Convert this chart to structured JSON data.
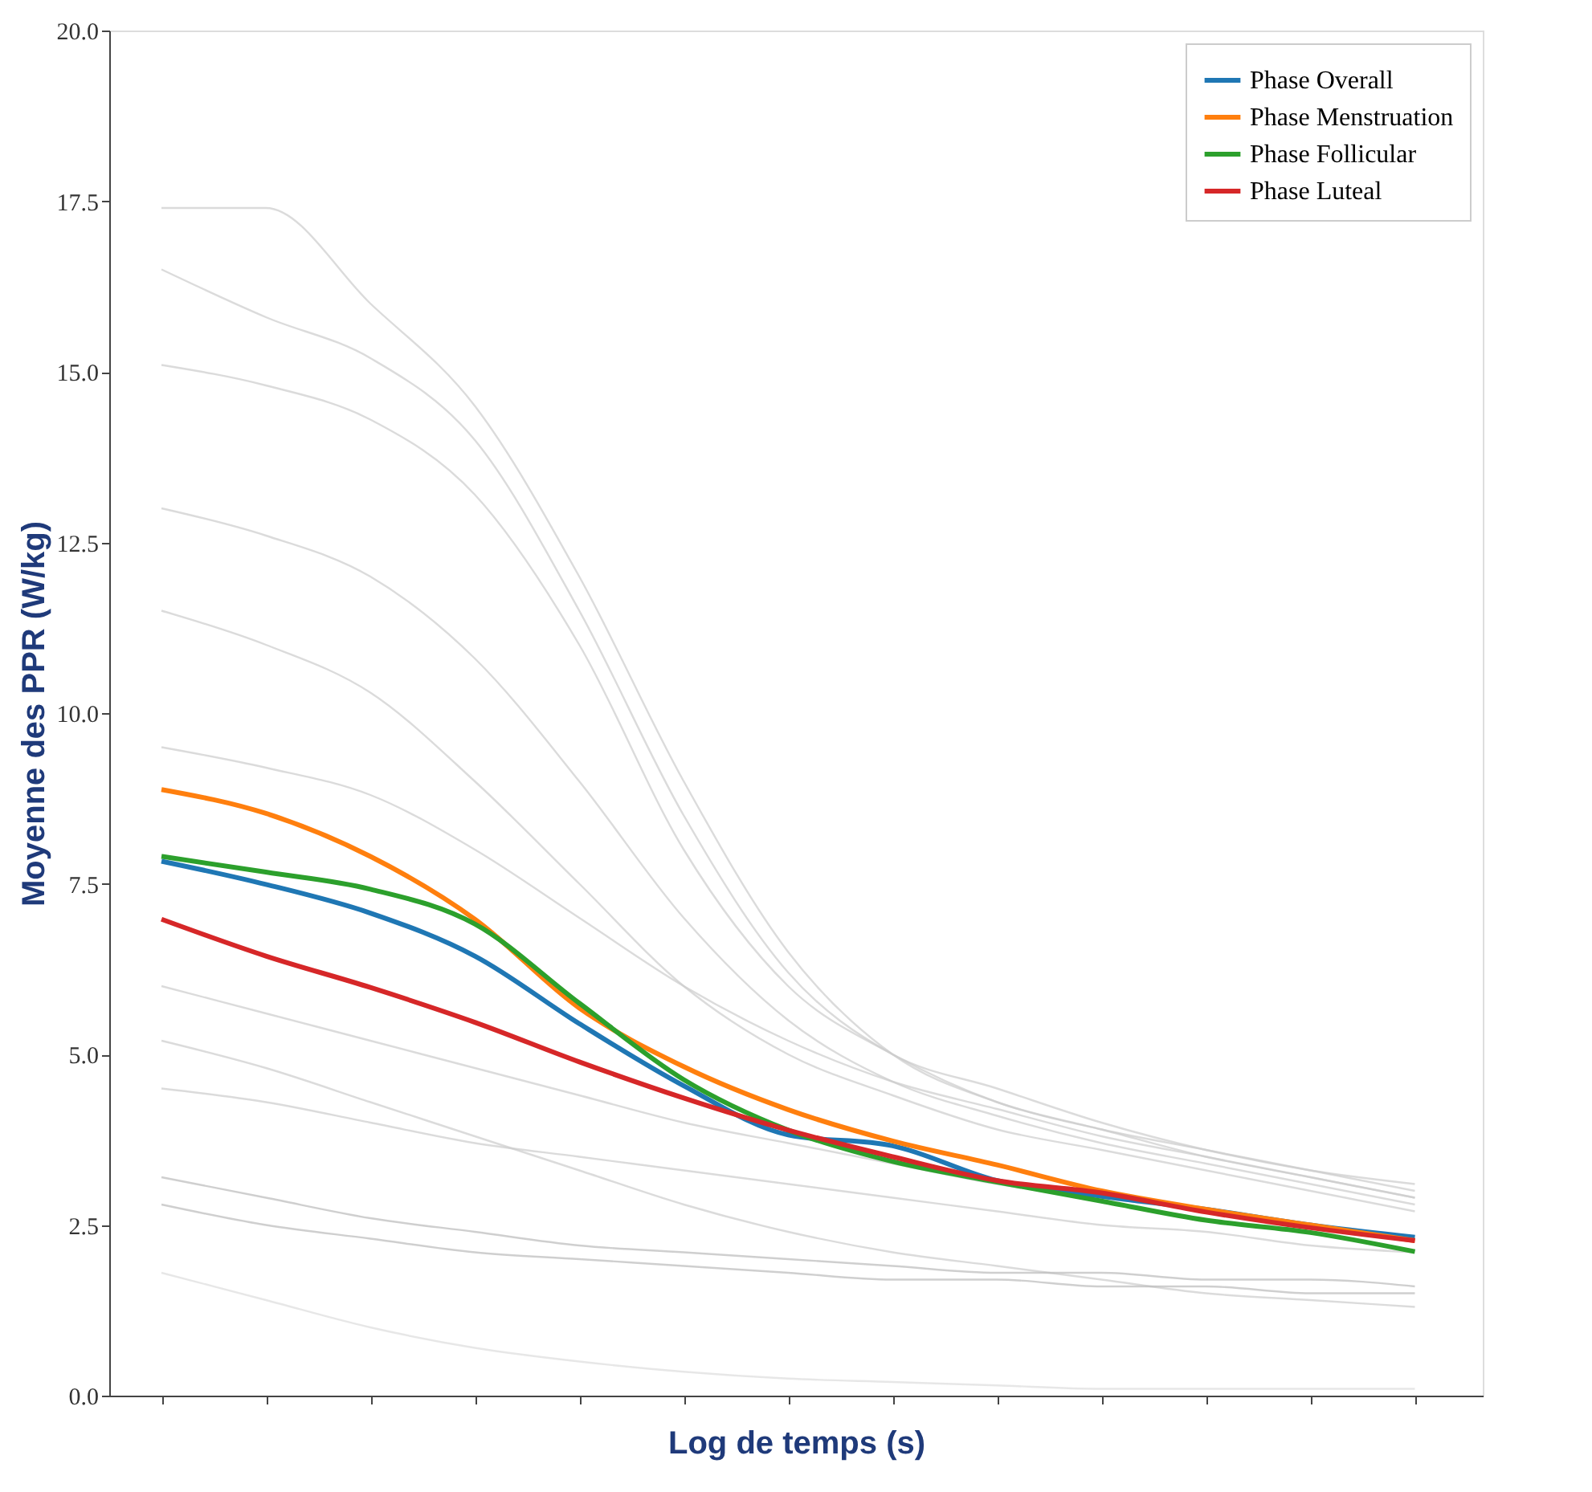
{
  "chart_data": {
    "type": "line",
    "xlabel": "Log de temps (s)",
    "ylabel": "Moyenne des PPR (W/kg)",
    "categories": [
      null,
      null,
      null,
      null,
      null,
      null,
      null,
      null,
      null,
      null,
      null,
      null,
      null
    ],
    "ylim": [
      0,
      20
    ],
    "yticks": [
      {
        "value": 0,
        "label": "0.0"
      },
      {
        "value": 2.5,
        "label": "2.5"
      },
      {
        "value": 5,
        "label": "5.0"
      },
      {
        "value": 7.5,
        "label": "7.5"
      },
      {
        "value": 10,
        "label": "10.0"
      },
      {
        "value": 12.5,
        "label": "12.5"
      },
      {
        "value": 15,
        "label": "15.0"
      },
      {
        "value": 17.5,
        "label": "17.5"
      },
      {
        "value": 20,
        "label": "20.0"
      }
    ],
    "tick_labels": "y",
    "grid": false,
    "legend": "top right",
    "marker": "none",
    "line_style": "solid",
    "series": [
      {
        "name": "Phase Overall",
        "color": "#1f77b4",
        "values": [
          7.83,
          7.49,
          7.07,
          6.44,
          5.45,
          4.54,
          3.82,
          3.66,
          3.15,
          2.92,
          2.73,
          2.5,
          2.32
        ]
      },
      {
        "name": "Phase Menstruation",
        "color": "#ff7f0e",
        "values": [
          8.88,
          8.53,
          7.9,
          6.98,
          5.68,
          4.82,
          4.19,
          3.73,
          3.38,
          3.0,
          2.73,
          2.5,
          2.27
        ]
      },
      {
        "name": "Phase Follicular",
        "color": "#2ca02c",
        "values": [
          7.9,
          7.67,
          7.42,
          6.91,
          5.75,
          4.63,
          3.89,
          3.43,
          3.13,
          2.85,
          2.57,
          2.39,
          2.11
        ]
      },
      {
        "name": "Phase Luteal",
        "color": "#d62728",
        "values": [
          6.98,
          6.44,
          5.98,
          5.47,
          4.89,
          4.36,
          3.89,
          3.5,
          3.15,
          2.97,
          2.69,
          2.46,
          2.27
        ]
      },
      {
        "color": "#cccccc",
        "values": [
          17.4,
          17.4,
          16.0,
          14.5,
          12.0,
          9.0,
          6.5,
          5.0,
          4.3,
          3.9,
          3.6,
          3.3,
          3.0
        ]
      },
      {
        "color": "#cccccc",
        "values": [
          16.5,
          15.8,
          15.2,
          14.0,
          11.5,
          8.5,
          6.2,
          5.0,
          4.5,
          4.0,
          3.6,
          3.3,
          3.1
        ]
      },
      {
        "color": "#cccccc",
        "values": [
          15.1,
          14.8,
          14.3,
          13.2,
          11.0,
          8.0,
          6.0,
          5.0,
          4.3,
          3.9,
          3.5,
          3.2,
          2.9
        ]
      },
      {
        "color": "#cccccc",
        "values": [
          13.0,
          12.6,
          12.0,
          10.8,
          9.0,
          7.0,
          5.5,
          4.6,
          4.1,
          3.7,
          3.4,
          3.1,
          2.8
        ]
      },
      {
        "color": "#cccccc",
        "values": [
          11.5,
          11.0,
          10.3,
          9.0,
          7.5,
          6.0,
          5.0,
          4.4,
          3.9,
          3.6,
          3.3,
          3.0,
          2.7
        ]
      },
      {
        "color": "#cccccc",
        "values": [
          9.5,
          9.2,
          8.8,
          8.0,
          7.0,
          6.0,
          5.2,
          4.6,
          4.2,
          3.8,
          3.5,
          3.2,
          2.9
        ]
      },
      {
        "color": "#cccccc",
        "values": [
          6.0,
          5.6,
          5.2,
          4.8,
          4.4,
          4.0,
          3.7,
          3.4,
          3.1,
          2.9,
          2.7,
          2.5,
          2.3
        ]
      },
      {
        "color": "#cccccc",
        "values": [
          5.2,
          4.8,
          4.3,
          3.8,
          3.3,
          2.8,
          2.4,
          2.1,
          1.9,
          1.7,
          1.5,
          1.4,
          1.3
        ]
      },
      {
        "color": "#cccccc",
        "values": [
          4.5,
          4.3,
          4.0,
          3.7,
          3.5,
          3.3,
          3.1,
          2.9,
          2.7,
          2.5,
          2.4,
          2.2,
          2.1
        ]
      },
      {
        "color": "#bbbbbb",
        "values": [
          3.2,
          2.9,
          2.6,
          2.4,
          2.2,
          2.1,
          2.0,
          1.9,
          1.8,
          1.8,
          1.7,
          1.7,
          1.6
        ]
      },
      {
        "color": "#bbbbbb",
        "values": [
          2.8,
          2.5,
          2.3,
          2.1,
          2.0,
          1.9,
          1.8,
          1.7,
          1.7,
          1.6,
          1.6,
          1.5,
          1.5
        ]
      },
      {
        "color": "#dddddd",
        "values": [
          1.8,
          1.4,
          1.0,
          0.7,
          0.5,
          0.35,
          0.25,
          0.2,
          0.15,
          0.1,
          0.1,
          0.1,
          0.1
        ]
      }
    ]
  }
}
